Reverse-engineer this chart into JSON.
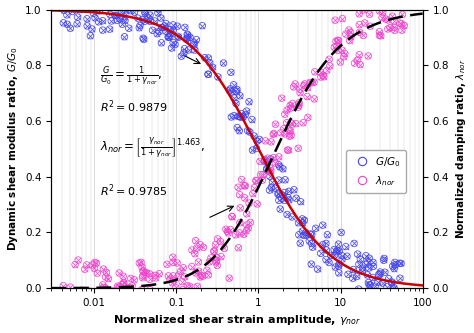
{
  "xlim": [
    0.003,
    100
  ],
  "ylim": [
    0.0,
    1.0
  ],
  "xlabel": "Normalized shear strain amplitude, $\\gamma_{nor}$",
  "ylabel_left": "Dynamic shear modulus ratio, $G/G_0$",
  "ylabel_right": "Normalized damping ratio, $\\lambda_{nor}$",
  "curve_color_red": "#cc0000",
  "curve_color_dashed": "#000000",
  "scatter_color_blue": "#4444ee",
  "scatter_color_magenta": "#ee44cc",
  "background_color": "#ffffff",
  "grid_color": "#cccccc",
  "legend_G": "$G/G_0$",
  "legend_lambda": "$\\lambda_{nor}$",
  "np_seed": 42,
  "n_scatter": 280,
  "yticks": [
    0.0,
    0.2,
    0.4,
    0.6,
    0.8,
    1.0
  ],
  "xtick_labels": [
    "0.01",
    "0.1",
    "1",
    "10",
    "100"
  ]
}
